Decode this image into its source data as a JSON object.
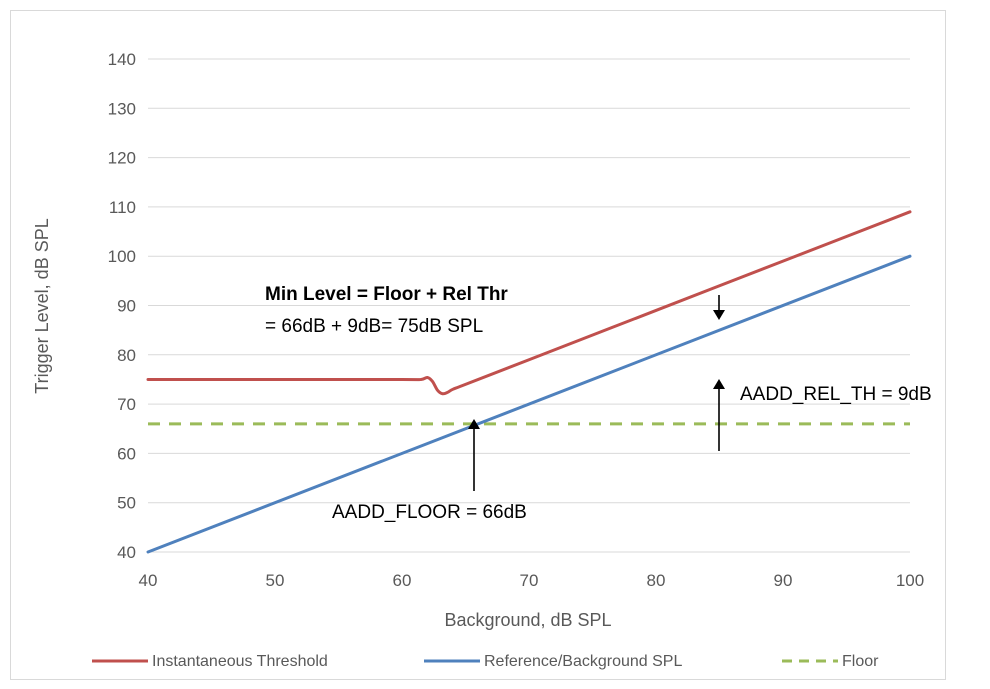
{
  "chart_data": {
    "type": "line",
    "xlabel": "Background, dB SPL",
    "ylabel": "Trigger Level, dB SPL",
    "xlim": [
      40,
      100
    ],
    "ylim": [
      40,
      140
    ],
    "x_ticks": [
      40,
      50,
      60,
      70,
      80,
      90,
      100
    ],
    "y_ticks": [
      40,
      50,
      60,
      70,
      80,
      90,
      100,
      110,
      120,
      130,
      140
    ],
    "grid": "horizontal",
    "legend_position": "bottom",
    "series": [
      {
        "name": "Instantaneous Threshold",
        "color": "#c0504d",
        "style": "solid",
        "x": [
          40,
          50,
          60,
          61.5,
          62,
          62.4,
          62.8,
          63.2,
          63.6,
          64,
          65,
          70,
          80,
          90,
          100
        ],
        "y": [
          75,
          75,
          75,
          75,
          75.4,
          74.6,
          72.8,
          72.1,
          72.4,
          73,
          74,
          79,
          89,
          99,
          109
        ]
      },
      {
        "name": "Reference/Background SPL",
        "color": "#4f81bd",
        "style": "solid",
        "x": [
          40,
          100
        ],
        "y": [
          40,
          100
        ]
      },
      {
        "name": "Floor",
        "color": "#9bbb59",
        "style": "dashed",
        "x": [
          40,
          100
        ],
        "y": [
          66,
          66
        ]
      }
    ],
    "annotations": {
      "min_level_title": "Min Level = Floor + Rel Thr",
      "min_level_eq": "= 66dB + 9dB= 75dB SPL",
      "rel_th_label": "AADD_REL_TH = 9dB",
      "floor_label": "AADD_FLOOR = 66dB"
    }
  }
}
